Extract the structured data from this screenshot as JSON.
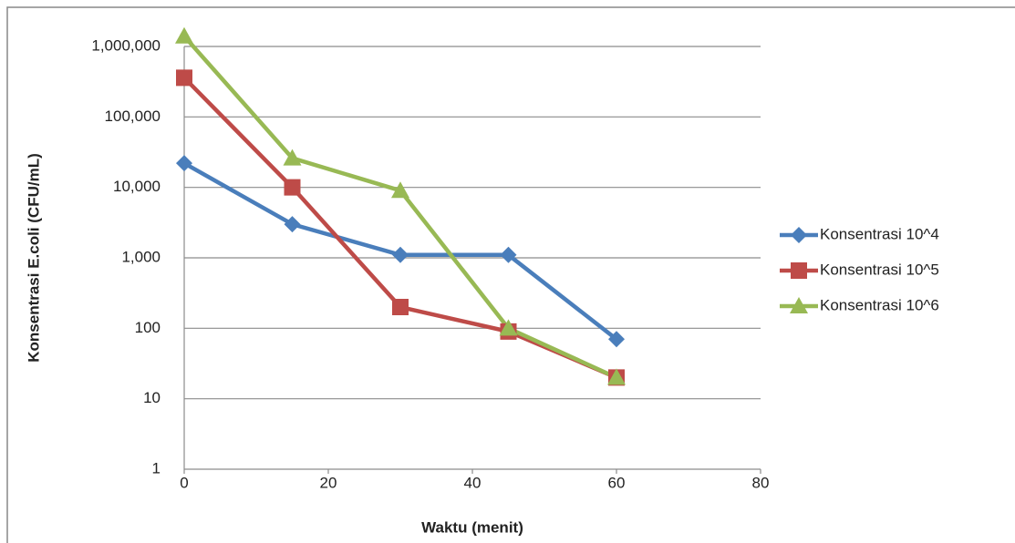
{
  "chart_data": {
    "type": "line",
    "x_label": "Waktu (menit)",
    "y_label": "Konsentrasi E.coli (CFU/mL)",
    "x": [
      0,
      15,
      30,
      45,
      60
    ],
    "series": [
      {
        "name": "Konsentrasi 10^4",
        "color": "#4a7ebb",
        "marker": "diamond",
        "values": [
          22000,
          3000,
          1100,
          1100,
          70
        ]
      },
      {
        "name": "Konsentrasi 10^5",
        "color": "#be4b48",
        "marker": "square",
        "values": [
          360000,
          10000,
          200,
          90,
          20
        ]
      },
      {
        "name": "Konsentrasi 10^6",
        "color": "#98b954",
        "marker": "triangle",
        "values": [
          1400000,
          26000,
          9000,
          100,
          20
        ]
      }
    ],
    "xlim": [
      0,
      80
    ],
    "xticks": [
      0,
      20,
      40,
      60,
      80
    ],
    "ylim": [
      1,
      1000000
    ],
    "yticks": [
      1,
      10,
      100,
      {
        "value": 1000,
        "label": "1,000"
      },
      {
        "value": 10000,
        "label": "10,000"
      },
      {
        "value": 100000,
        "label": "100,000"
      },
      {
        "value": 1000000,
        "label": "1,000,000"
      }
    ],
    "log_y": true,
    "grid": true,
    "legend": "right"
  }
}
